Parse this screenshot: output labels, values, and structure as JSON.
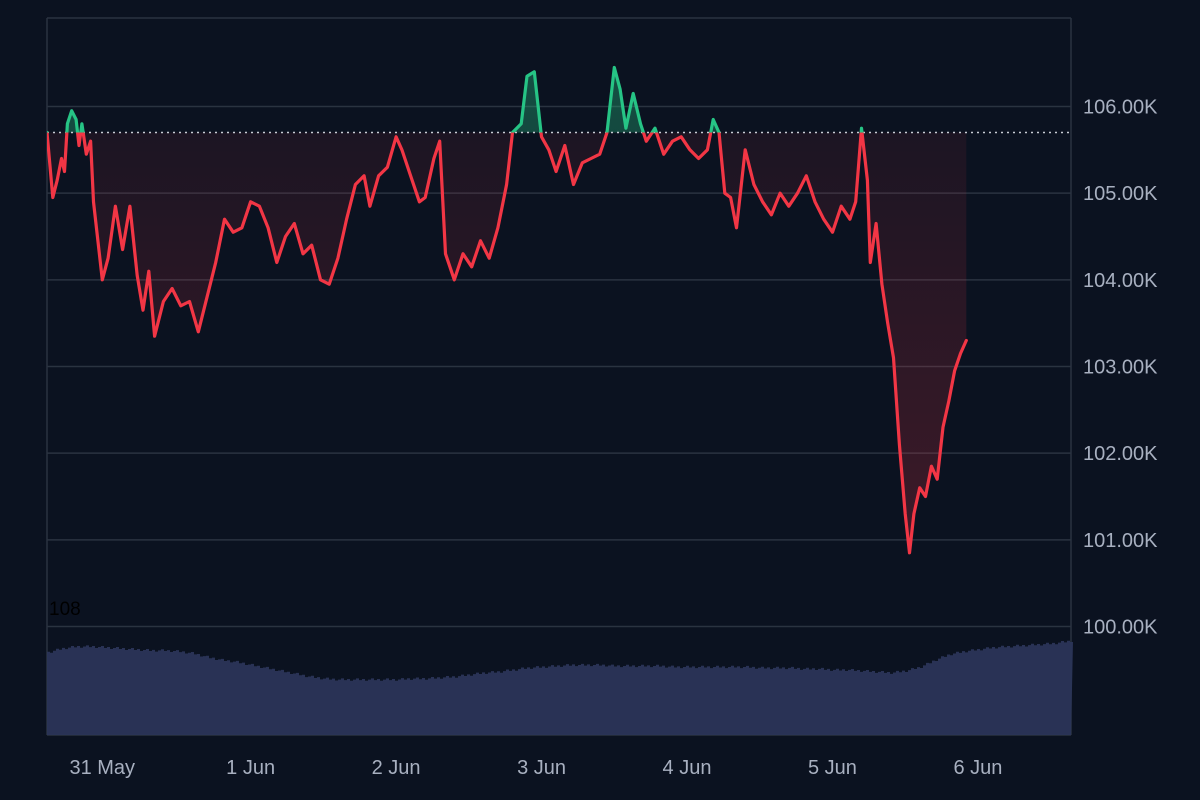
{
  "chart_data": {
    "type": "line",
    "title": "",
    "xlabel": "",
    "ylabel": "",
    "baseline": 105700,
    "ylim": [
      99000,
      107000
    ],
    "y_ticks": [
      {
        "value": 106000,
        "label": "106.00K"
      },
      {
        "value": 105000,
        "label": "105.00K"
      },
      {
        "value": 104000,
        "label": "104.00K"
      },
      {
        "value": 103000,
        "label": "103.00K"
      },
      {
        "value": 102000,
        "label": "102.00K"
      },
      {
        "value": 101000,
        "label": "101.00K"
      },
      {
        "value": 100000,
        "label": "100.00K"
      }
    ],
    "x_ticks": [
      {
        "value": 0.38,
        "label": "31 May"
      },
      {
        "value": 1.4,
        "label": "1 Jun"
      },
      {
        "value": 2.4,
        "label": "2 Jun"
      },
      {
        "value": 3.4,
        "label": "3 Jun"
      },
      {
        "value": 4.4,
        "label": "4 Jun"
      },
      {
        "value": 5.4,
        "label": "5 Jun"
      },
      {
        "value": 6.4,
        "label": "6 Jun"
      }
    ],
    "xlim": [
      0,
      7.04
    ],
    "colors": {
      "above": "#26c485",
      "below": "#f23645",
      "volume": "#2b3558",
      "grid": "#2a3340",
      "background": "#0b1220"
    },
    "price_series": {
      "name": "",
      "points": [
        [
          0.0,
          105700
        ],
        [
          0.04,
          104950
        ],
        [
          0.07,
          105150
        ],
        [
          0.1,
          105400
        ],
        [
          0.12,
          105250
        ],
        [
          0.14,
          105800
        ],
        [
          0.17,
          105950
        ],
        [
          0.2,
          105850
        ],
        [
          0.22,
          105550
        ],
        [
          0.24,
          105800
        ],
        [
          0.27,
          105450
        ],
        [
          0.3,
          105600
        ],
        [
          0.32,
          104900
        ],
        [
          0.38,
          104000
        ],
        [
          0.42,
          104250
        ],
        [
          0.47,
          104850
        ],
        [
          0.52,
          104350
        ],
        [
          0.57,
          104850
        ],
        [
          0.62,
          104050
        ],
        [
          0.66,
          103650
        ],
        [
          0.7,
          104100
        ],
        [
          0.74,
          103350
        ],
        [
          0.8,
          103750
        ],
        [
          0.86,
          103900
        ],
        [
          0.92,
          103700
        ],
        [
          0.98,
          103750
        ],
        [
          1.04,
          103400
        ],
        [
          1.1,
          103800
        ],
        [
          1.16,
          104200
        ],
        [
          1.22,
          104700
        ],
        [
          1.28,
          104550
        ],
        [
          1.34,
          104600
        ],
        [
          1.4,
          104900
        ],
        [
          1.46,
          104850
        ],
        [
          1.52,
          104600
        ],
        [
          1.58,
          104200
        ],
        [
          1.64,
          104500
        ],
        [
          1.7,
          104650
        ],
        [
          1.76,
          104300
        ],
        [
          1.82,
          104400
        ],
        [
          1.88,
          104000
        ],
        [
          1.94,
          103950
        ],
        [
          2.0,
          104250
        ],
        [
          2.06,
          104700
        ],
        [
          2.12,
          105100
        ],
        [
          2.18,
          105200
        ],
        [
          2.22,
          104850
        ],
        [
          2.28,
          105200
        ],
        [
          2.34,
          105300
        ],
        [
          2.4,
          105650
        ],
        [
          2.44,
          105500
        ],
        [
          2.5,
          105200
        ],
        [
          2.56,
          104900
        ],
        [
          2.6,
          104950
        ],
        [
          2.66,
          105400
        ],
        [
          2.7,
          105600
        ],
        [
          2.74,
          104300
        ],
        [
          2.8,
          104000
        ],
        [
          2.86,
          104300
        ],
        [
          2.92,
          104150
        ],
        [
          2.98,
          104450
        ],
        [
          3.04,
          104250
        ],
        [
          3.1,
          104600
        ],
        [
          3.16,
          105100
        ],
        [
          3.2,
          105700
        ],
        [
          3.26,
          105800
        ],
        [
          3.3,
          106350
        ],
        [
          3.35,
          106400
        ],
        [
          3.4,
          105650
        ],
        [
          3.45,
          105500
        ],
        [
          3.5,
          105250
        ],
        [
          3.56,
          105550
        ],
        [
          3.62,
          105100
        ],
        [
          3.68,
          105350
        ],
        [
          3.74,
          105400
        ],
        [
          3.8,
          105450
        ],
        [
          3.85,
          105700
        ],
        [
          3.9,
          106450
        ],
        [
          3.94,
          106200
        ],
        [
          3.98,
          105750
        ],
        [
          4.03,
          106150
        ],
        [
          4.08,
          105800
        ],
        [
          4.12,
          105600
        ],
        [
          4.18,
          105750
        ],
        [
          4.24,
          105450
        ],
        [
          4.3,
          105600
        ],
        [
          4.36,
          105650
        ],
        [
          4.42,
          105500
        ],
        [
          4.48,
          105400
        ],
        [
          4.54,
          105500
        ],
        [
          4.58,
          105850
        ],
        [
          4.62,
          105700
        ],
        [
          4.66,
          105000
        ],
        [
          4.7,
          104950
        ],
        [
          4.74,
          104600
        ],
        [
          4.8,
          105500
        ],
        [
          4.86,
          105100
        ],
        [
          4.92,
          104900
        ],
        [
          4.98,
          104750
        ],
        [
          5.04,
          105000
        ],
        [
          5.1,
          104850
        ],
        [
          5.16,
          105000
        ],
        [
          5.22,
          105200
        ],
        [
          5.28,
          104900
        ],
        [
          5.34,
          104700
        ],
        [
          5.4,
          104550
        ],
        [
          5.46,
          104850
        ],
        [
          5.52,
          104700
        ],
        [
          5.56,
          104900
        ],
        [
          5.6,
          105750
        ],
        [
          5.64,
          105150
        ],
        [
          5.66,
          104200
        ],
        [
          5.7,
          104650
        ],
        [
          5.74,
          103950
        ],
        [
          5.78,
          103500
        ],
        [
          5.82,
          103100
        ],
        [
          5.86,
          102100
        ],
        [
          5.9,
          101300
        ],
        [
          5.93,
          100850
        ],
        [
          5.96,
          101300
        ],
        [
          6.0,
          101600
        ],
        [
          6.04,
          101500
        ],
        [
          6.08,
          101850
        ],
        [
          6.12,
          101700
        ],
        [
          6.16,
          102300
        ],
        [
          6.2,
          102600
        ],
        [
          6.24,
          102950
        ],
        [
          6.28,
          103150
        ],
        [
          6.32,
          103300
        ]
      ]
    },
    "volume_series": {
      "name": "",
      "label": "108",
      "points": [
        [
          0.0,
          85
        ],
        [
          0.1,
          89
        ],
        [
          0.2,
          91
        ],
        [
          0.3,
          91
        ],
        [
          0.4,
          90
        ],
        [
          0.5,
          89
        ],
        [
          0.6,
          88
        ],
        [
          0.7,
          87
        ],
        [
          0.8,
          87
        ],
        [
          0.9,
          86
        ],
        [
          1.0,
          84
        ],
        [
          1.1,
          80
        ],
        [
          1.2,
          77
        ],
        [
          1.3,
          75
        ],
        [
          1.4,
          72
        ],
        [
          1.5,
          69
        ],
        [
          1.6,
          66
        ],
        [
          1.7,
          63
        ],
        [
          1.8,
          60
        ],
        [
          1.9,
          58
        ],
        [
          2.0,
          57
        ],
        [
          2.1,
          57
        ],
        [
          2.2,
          57
        ],
        [
          2.3,
          57
        ],
        [
          2.4,
          57
        ],
        [
          2.5,
          58
        ],
        [
          2.6,
          58
        ],
        [
          2.7,
          59
        ],
        [
          2.8,
          60
        ],
        [
          2.9,
          62
        ],
        [
          3.0,
          64
        ],
        [
          3.1,
          65
        ],
        [
          3.2,
          67
        ],
        [
          3.3,
          69
        ],
        [
          3.4,
          70
        ],
        [
          3.5,
          71
        ],
        [
          3.6,
          72
        ],
        [
          3.7,
          72
        ],
        [
          3.8,
          72
        ],
        [
          3.9,
          71
        ],
        [
          4.0,
          71
        ],
        [
          4.1,
          71
        ],
        [
          4.2,
          71
        ],
        [
          4.3,
          70
        ],
        [
          4.4,
          70
        ],
        [
          4.5,
          70
        ],
        [
          4.6,
          70
        ],
        [
          4.7,
          70
        ],
        [
          4.8,
          70
        ],
        [
          4.9,
          69
        ],
        [
          5.0,
          69
        ],
        [
          5.1,
          69
        ],
        [
          5.2,
          68
        ],
        [
          5.3,
          68
        ],
        [
          5.4,
          67
        ],
        [
          5.5,
          67
        ],
        [
          5.6,
          66
        ],
        [
          5.7,
          65
        ],
        [
          5.8,
          64
        ],
        [
          5.9,
          66
        ],
        [
          6.0,
          70
        ],
        [
          6.1,
          77
        ],
        [
          6.2,
          83
        ],
        [
          6.3,
          86
        ],
        [
          6.4,
          88
        ],
        [
          6.5,
          90
        ],
        [
          6.6,
          91
        ],
        [
          6.7,
          92
        ],
        [
          6.8,
          93
        ],
        [
          6.9,
          94
        ],
        [
          7.0,
          96
        ],
        [
          7.04,
          97
        ]
      ],
      "max": 108
    }
  }
}
